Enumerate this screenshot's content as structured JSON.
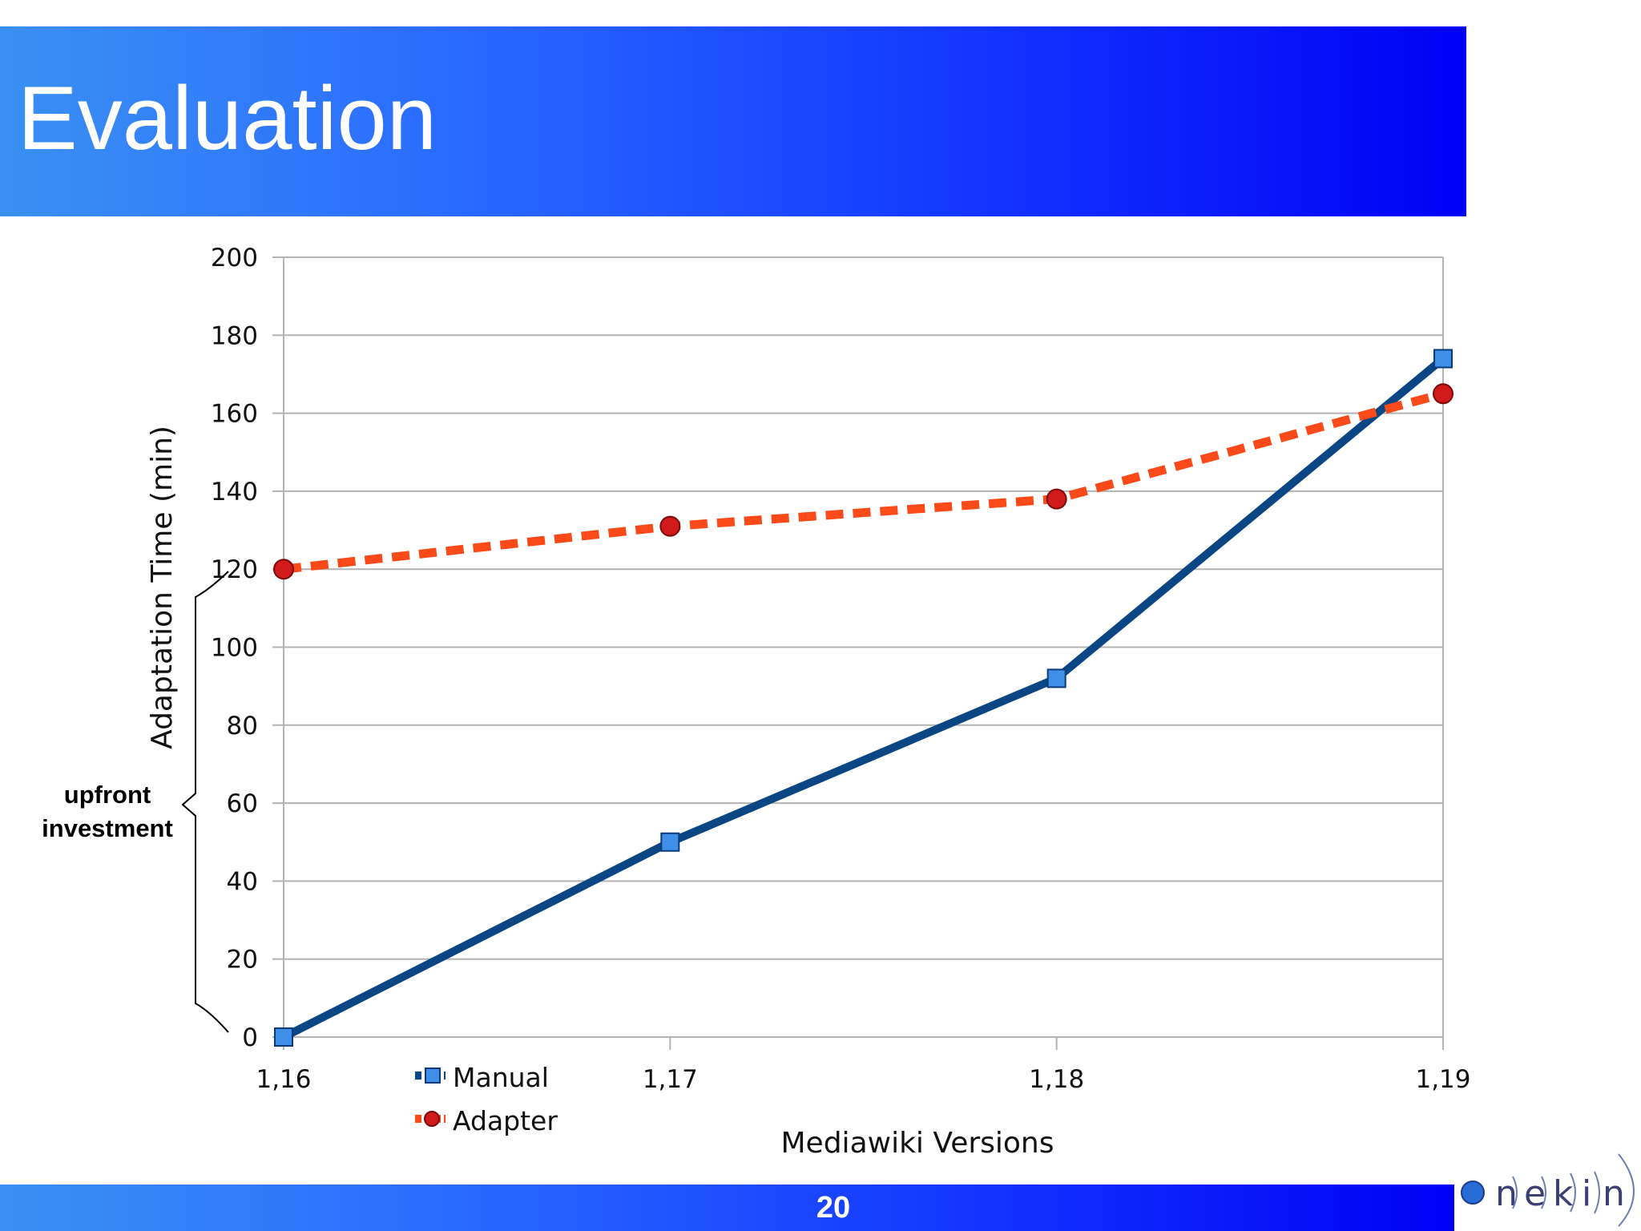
{
  "slide": {
    "title": "Evaluation",
    "page_number": "20",
    "annotation_lines": [
      "upfront",
      "investment"
    ],
    "logo_text": "onekin"
  },
  "colors": {
    "manual": "#0a4584",
    "adapter": "#fb4a1a",
    "grid": "#b3b3b3"
  },
  "chart_data": {
    "type": "line",
    "title": "",
    "xlabel": "Mediawiki Versions",
    "ylabel": "Adaptation Time (min)",
    "categories": [
      "1,16",
      "1,17",
      "1,18",
      "1,19"
    ],
    "ylim": [
      0,
      200
    ],
    "yticks": [
      0,
      20,
      40,
      60,
      80,
      100,
      120,
      140,
      160,
      180,
      200
    ],
    "grid": true,
    "legend_position": "bottom-left",
    "series": [
      {
        "name": "Manual",
        "values": [
          0,
          50,
          92,
          174
        ]
      },
      {
        "name": "Adapter",
        "values": [
          120,
          131,
          138,
          165
        ]
      }
    ]
  }
}
